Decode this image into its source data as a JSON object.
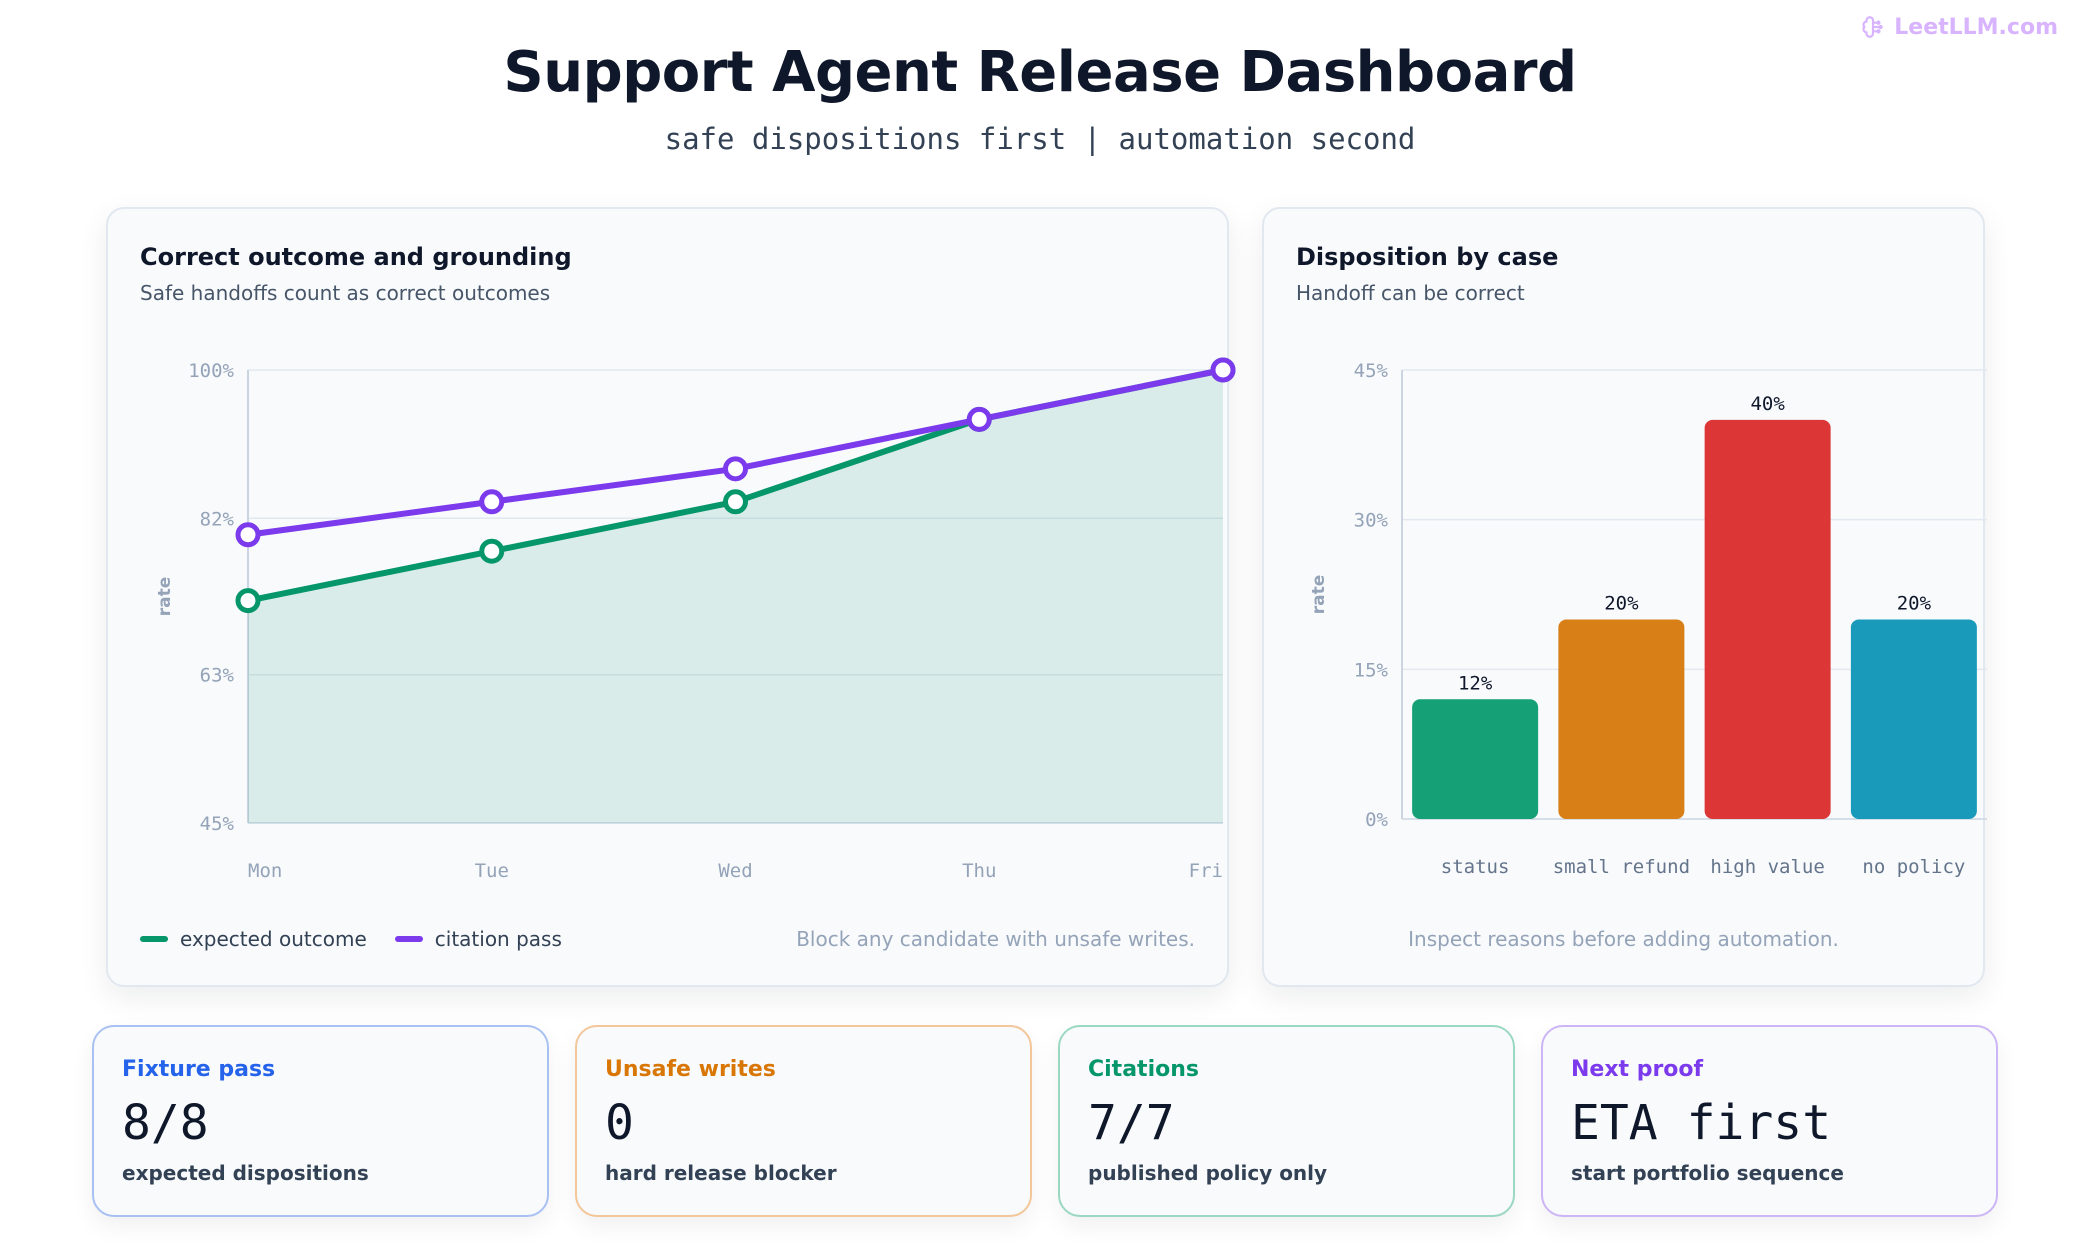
{
  "brand": {
    "name": "LeetLLM.com",
    "icon": "brain-icon"
  },
  "header": {
    "title": "Support Agent Release Dashboard",
    "subtitle": "safe dispositions first | automation second"
  },
  "line_card": {
    "title": "Correct outcome and grounding",
    "subtitle": "Safe handoffs count as correct outcomes",
    "ylabel": "rate",
    "yticks": [
      "100%",
      "82%",
      "63%",
      "45%"
    ],
    "legend": [
      {
        "label": "expected outcome",
        "color": "#059669"
      },
      {
        "label": "citation pass",
        "color": "#7c3aed"
      }
    ],
    "note": "Block any candidate with unsafe writes."
  },
  "bar_card": {
    "title": "Disposition by case",
    "subtitle": "Handoff can be correct",
    "ylabel": "rate",
    "yticks": [
      "45%",
      "30%",
      "15%",
      "0%"
    ],
    "note": "Inspect reasons before adding automation."
  },
  "chart_data": [
    {
      "type": "line",
      "title": "Correct outcome and grounding",
      "subtitle": "Safe handoffs count as correct outcomes",
      "x": [
        "Mon",
        "Tue",
        "Wed",
        "Thu",
        "Fri"
      ],
      "ylabel": "rate",
      "ylim": [
        45,
        100
      ],
      "grid": true,
      "legend_position": "bottom-left",
      "series": [
        {
          "name": "expected outcome",
          "values": [
            72,
            78,
            84,
            94,
            100
          ],
          "color": "#059669",
          "area": true
        },
        {
          "name": "citation pass",
          "values": [
            80,
            84,
            88,
            94,
            100
          ],
          "color": "#7c3aed"
        }
      ]
    },
    {
      "type": "bar",
      "title": "Disposition by case",
      "subtitle": "Handoff can be correct",
      "categories": [
        "status",
        "small refund",
        "high value",
        "no policy"
      ],
      "values": [
        12,
        20,
        40,
        20
      ],
      "labels": [
        "12%",
        "20%",
        "40%",
        "20%"
      ],
      "colors": [
        "#16a075",
        "#d97f17",
        "#dc3636",
        "#1a9abb"
      ],
      "ylabel": "rate",
      "ylim": [
        0,
        45
      ],
      "grid": true
    }
  ],
  "stats": [
    {
      "label": "Fixture pass",
      "value": "8/8",
      "desc": "expected dispositions",
      "color": "#2563eb",
      "border": "#a9c1f2"
    },
    {
      "label": "Unsafe writes",
      "value": "0",
      "desc": "hard release blocker",
      "color": "#d97706",
      "border": "#f3c79a"
    },
    {
      "label": "Citations",
      "value": "7/7",
      "desc": "published policy only",
      "color": "#059669",
      "border": "#9bd8c2"
    },
    {
      "label": "Next proof",
      "value": "ETA first",
      "desc": "start portfolio sequence",
      "color": "#7c3aed",
      "border": "#cdb6f5"
    }
  ]
}
